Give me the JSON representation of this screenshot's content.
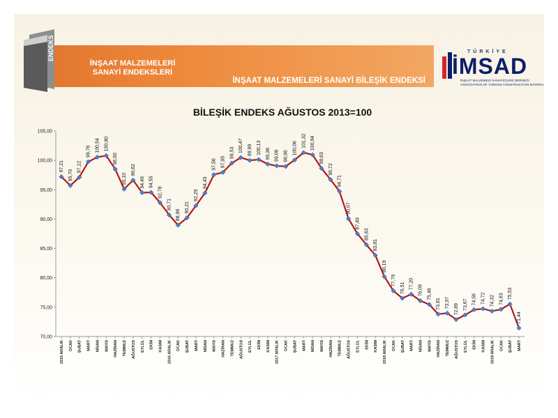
{
  "branding": {
    "badge_label": "ENDEKS",
    "org_title_lines": [
      "İNŞAAT MALZEMELERİ",
      "SANAYİ ENDEKSLERİ"
    ],
    "report_title": "İNŞAAT MALZEMELERİ SANAYİ BİLEŞİK ENDEKSİ",
    "imsad": {
      "country": "TÜRKİYE",
      "name": "İMSAD",
      "tagline_lines": [
        "İNŞAAT MALZEMESİ SANAYİCİLERİ DERNEĞİ",
        "ASSOCIATION OF TURKISH CONSTRUCTION MATERIAL PRODUCERS"
      ]
    }
  },
  "colors": {
    "line": "#b01818",
    "marker": "#4f7fc4",
    "accent": "#e9802f"
  },
  "chart_data": {
    "type": "line",
    "title": "BİLEŞİK ENDEKS AĞUSTOS 2013=100",
    "xlabel": "",
    "ylabel": "",
    "ylim": [
      70,
      105
    ],
    "yticks": [
      "70,00",
      "75,00",
      "80,00",
      "85,00",
      "90,00",
      "95,00",
      "100,00",
      "105,00"
    ],
    "grid": false,
    "categories": [
      "2015 ARALIK",
      "OCAK",
      "ŞUBAT",
      "MART",
      "NİSAN",
      "MAYIS",
      "HAZİRAN",
      "TEMMUZ",
      "AĞUSTOS",
      "EYLÜL",
      "EKİM",
      "KASIM",
      "2016 ARALIK",
      "OCAK",
      "ŞUBAT",
      "MART",
      "NİSAN",
      "MAYIS",
      "HAZİRAN",
      "TEMMUZ",
      "AĞUSTOS",
      "EYLÜL",
      "EKİM",
      "KASIM",
      "2017 ARALIK",
      "OCAK",
      "ŞUBAT",
      "MART",
      "NİSAN",
      "MAYIS",
      "HAZİRAN",
      "TEMMUZ",
      "AĞUSTOS",
      "EYLÜL",
      "EKİM",
      "KASIM",
      "2018 ARALIK",
      "OCAK",
      "ŞUBAT",
      "MART",
      "NİSAN",
      "MAYIS",
      "HAZİRAN",
      "TEMMUZ",
      "AĞUSTOS",
      "EYLÜL",
      "EKİM",
      "KASIM",
      "2019 ARALIK",
      "OCAK",
      "ŞUBAT",
      "MART"
    ],
    "values": [
      97.21,
      95.7,
      97.12,
      99.76,
      100.54,
      100.8,
      98.5,
      95.1,
      96.62,
      94.49,
      94.55,
      92.78,
      90.71,
      88.96,
      90.21,
      92.29,
      94.43,
      97.56,
      97.95,
      99.53,
      100.47,
      99.99,
      100.13,
      99.36,
      99.06,
      98.96,
      100.06,
      101.32,
      100.94,
      98.63,
      96.72,
      94.71,
      90.07,
      87.49,
      85.63,
      83.81,
      80.19,
      77.79,
      76.51,
      77.2,
      76.09,
      75.46,
      73.81,
      73.97,
      72.89,
      73.67,
      74.56,
      74.72,
      74.32,
      74.63,
      75.53,
      71.44
    ],
    "labels": [
      "97,21",
      "95,70",
      "97,12",
      "99,76",
      "100,54",
      "100,80",
      "98,50",
      "95,10",
      "96,62",
      "94,49",
      "94,55",
      "92,78",
      "90,71",
      "88,96",
      "90,21",
      "92,29",
      "94,43",
      "97,56",
      "97,95",
      "99,53",
      "100,47",
      "99,99",
      "100,13",
      "99,36",
      "99,06",
      "98,96",
      "100,06",
      "101,32",
      "100,94",
      "98,63",
      "96,72",
      "94,71",
      "90,07",
      "87,49",
      "85,63",
      "83,81",
      "80,19",
      "77,79",
      "76,51",
      "77,20",
      "76,09",
      "75,46",
      "73,81",
      "73,97",
      "72,89",
      "73,67",
      "74,56",
      "74,72",
      "74,32",
      "74,63",
      "75,53",
      "71,44"
    ]
  }
}
